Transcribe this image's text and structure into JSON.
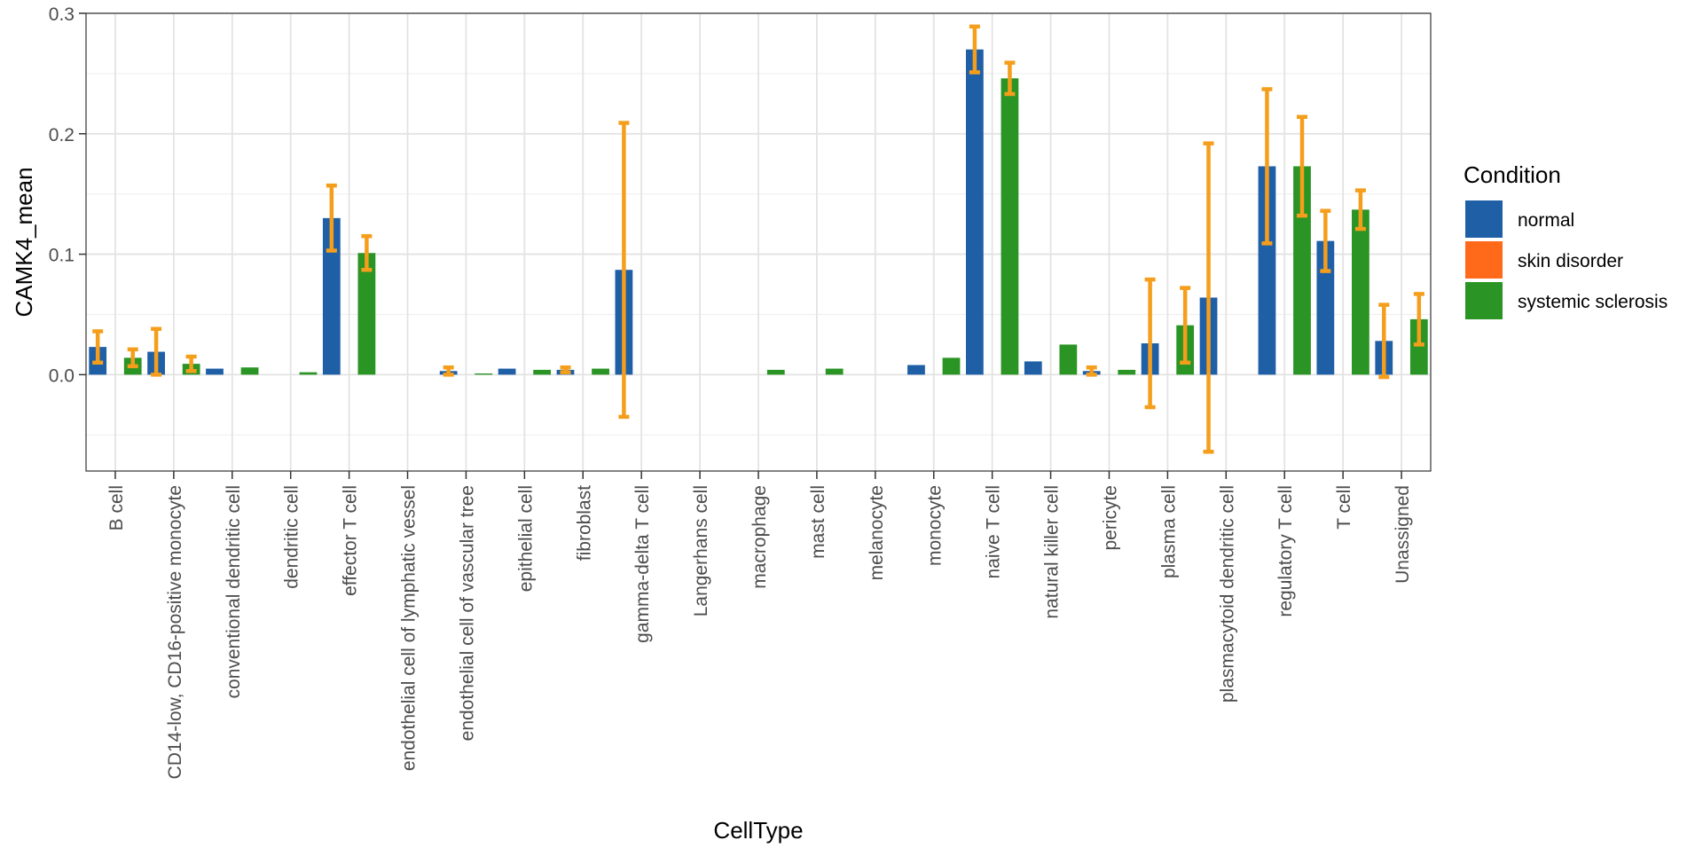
{
  "chart_data": {
    "type": "bar",
    "title": "",
    "xlabel": "CellType",
    "ylabel": "CAMK4_mean",
    "ylim": [
      -0.08,
      0.3
    ],
    "yticks": [
      0.0,
      0.1,
      0.2,
      0.3
    ],
    "ytick_labels": [
      "0.0",
      "0.1",
      "0.2",
      "0.3"
    ],
    "grid": true,
    "legend": {
      "title": "Condition",
      "position": "right"
    },
    "categories": [
      "B cell",
      "CD14-low, CD16-positive monocyte",
      "conventional dendritic cell",
      "dendritic cell",
      "effector T cell",
      "endothelial cell of lymphatic vessel",
      "endothelial cell of vascular tree",
      "epithelial cell",
      "fibroblast",
      "gamma-delta T cell",
      "Langerhans cell",
      "macrophage",
      "mast cell",
      "melanocyte",
      "monocyte",
      "naive T cell",
      "natural killer cell",
      "pericyte",
      "plasma cell",
      "plasmacytoid dendritic cell",
      "regulatory T cell",
      "T cell",
      "Unassigned"
    ],
    "series": [
      {
        "name": "normal",
        "color": "#1f5fa6",
        "values": [
          0.023,
          0.019,
          0.005,
          null,
          0.13,
          null,
          0.003,
          0.005,
          0.004,
          0.087,
          null,
          null,
          null,
          null,
          0.008,
          0.27,
          0.011,
          0.003,
          0.026,
          0.064,
          0.173,
          0.111,
          0.028
        ],
        "errors": [
          0.013,
          0.019,
          null,
          null,
          0.027,
          null,
          0.003,
          null,
          0.002,
          0.122,
          null,
          null,
          null,
          null,
          null,
          0.019,
          null,
          0.003,
          0.053,
          0.128,
          0.064,
          0.025,
          0.03
        ]
      },
      {
        "name": "skin disorder",
        "color": "#ff6a1a",
        "values": [
          null,
          null,
          null,
          null,
          null,
          null,
          null,
          null,
          null,
          null,
          null,
          null,
          null,
          null,
          null,
          null,
          null,
          null,
          null,
          null,
          null,
          null,
          null
        ],
        "errors": [
          null,
          null,
          null,
          null,
          null,
          null,
          null,
          null,
          null,
          null,
          null,
          null,
          null,
          null,
          null,
          null,
          null,
          null,
          null,
          null,
          null,
          null,
          null
        ]
      },
      {
        "name": "systemic sclerosis",
        "color": "#2a9424",
        "values": [
          0.014,
          0.009,
          0.006,
          0.002,
          0.101,
          null,
          0.001,
          0.004,
          0.005,
          null,
          null,
          0.004,
          0.005,
          null,
          0.014,
          0.246,
          0.025,
          0.004,
          0.041,
          null,
          0.173,
          0.137,
          0.046
        ],
        "errors": [
          0.007,
          0.006,
          null,
          null,
          0.014,
          null,
          null,
          null,
          null,
          null,
          null,
          null,
          null,
          null,
          null,
          0.013,
          null,
          null,
          0.031,
          null,
          0.041,
          0.016,
          0.021
        ]
      }
    ]
  }
}
